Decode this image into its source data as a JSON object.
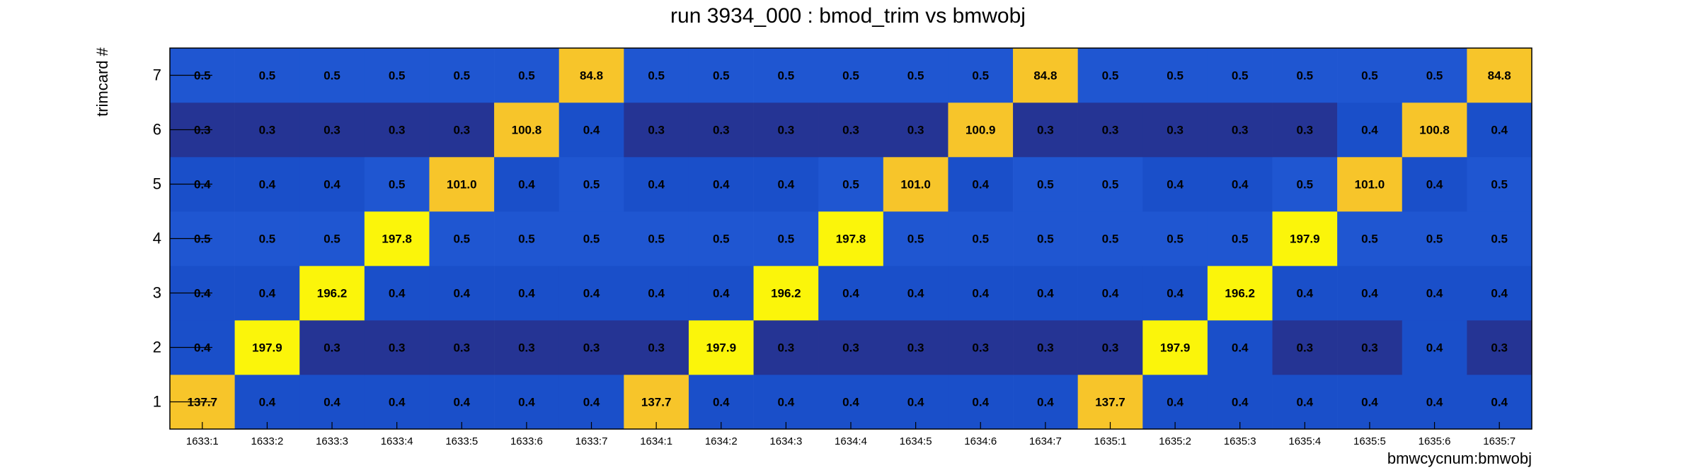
{
  "chart_data": {
    "type": "heatmap",
    "title": "run 3934_000 : bmod_trim vs bmwobj",
    "xlabel": "bmwcycnum:bmwobj",
    "ylabel": "trimcard #",
    "x_categories": [
      "1633:1",
      "1633:2",
      "1633:3",
      "1633:4",
      "1633:5",
      "1633:6",
      "1633:7",
      "1634:1",
      "1634:2",
      "1634:3",
      "1634:4",
      "1634:5",
      "1634:6",
      "1634:7",
      "1635:1",
      "1635:2",
      "1635:3",
      "1635:4",
      "1635:5",
      "1635:6",
      "1635:7"
    ],
    "y_categories": [
      "1",
      "2",
      "3",
      "4",
      "5",
      "6",
      "7"
    ],
    "rows": [
      {
        "y": "1",
        "values": [
          137.7,
          0.4,
          0.4,
          0.4,
          0.4,
          0.4,
          0.4,
          137.7,
          0.4,
          0.4,
          0.4,
          0.4,
          0.4,
          0.4,
          137.7,
          0.4,
          0.4,
          0.4,
          0.4,
          0.4,
          0.4
        ]
      },
      {
        "y": "2",
        "values": [
          0.4,
          197.9,
          0.3,
          0.3,
          0.3,
          0.3,
          0.3,
          0.3,
          197.9,
          0.3,
          0.3,
          0.3,
          0.3,
          0.3,
          0.3,
          197.9,
          0.4,
          0.3,
          0.3,
          0.4,
          0.3
        ]
      },
      {
        "y": "3",
        "values": [
          0.4,
          0.4,
          196.2,
          0.4,
          0.4,
          0.4,
          0.4,
          0.4,
          0.4,
          196.2,
          0.4,
          0.4,
          0.4,
          0.4,
          0.4,
          0.4,
          196.2,
          0.4,
          0.4,
          0.4,
          0.4
        ]
      },
      {
        "y": "4",
        "values": [
          0.5,
          0.5,
          0.5,
          197.8,
          0.5,
          0.5,
          0.5,
          0.5,
          0.5,
          0.5,
          197.8,
          0.5,
          0.5,
          0.5,
          0.5,
          0.5,
          0.5,
          197.9,
          0.5,
          0.5,
          0.5
        ]
      },
      {
        "y": "5",
        "values": [
          0.4,
          0.4,
          0.4,
          0.5,
          101.0,
          0.4,
          0.5,
          0.4,
          0.4,
          0.4,
          0.5,
          101.0,
          0.4,
          0.5,
          0.5,
          0.4,
          0.4,
          0.5,
          101.0,
          0.4,
          0.5
        ]
      },
      {
        "y": "6",
        "values": [
          0.3,
          0.3,
          0.3,
          0.3,
          0.3,
          100.8,
          0.4,
          0.3,
          0.3,
          0.3,
          0.3,
          0.3,
          100.9,
          0.3,
          0.3,
          0.3,
          0.3,
          0.3,
          0.4,
          100.8,
          0.4
        ]
      },
      {
        "y": "7",
        "values": [
          0.5,
          0.5,
          0.5,
          0.5,
          0.5,
          0.5,
          84.8,
          0.5,
          0.5,
          0.5,
          0.5,
          0.5,
          0.5,
          84.8,
          0.5,
          0.5,
          0.5,
          0.5,
          0.5,
          0.5,
          84.8
        ]
      }
    ],
    "grid": false,
    "legend": "none",
    "colors": {
      "very_low": "#253494",
      "low": "#1a4fc9",
      "mid_low": "#1f56d1",
      "mid": "#f7c52a",
      "high": "#fbf50a",
      "axis": "#000000",
      "background": "#ffffff"
    }
  }
}
